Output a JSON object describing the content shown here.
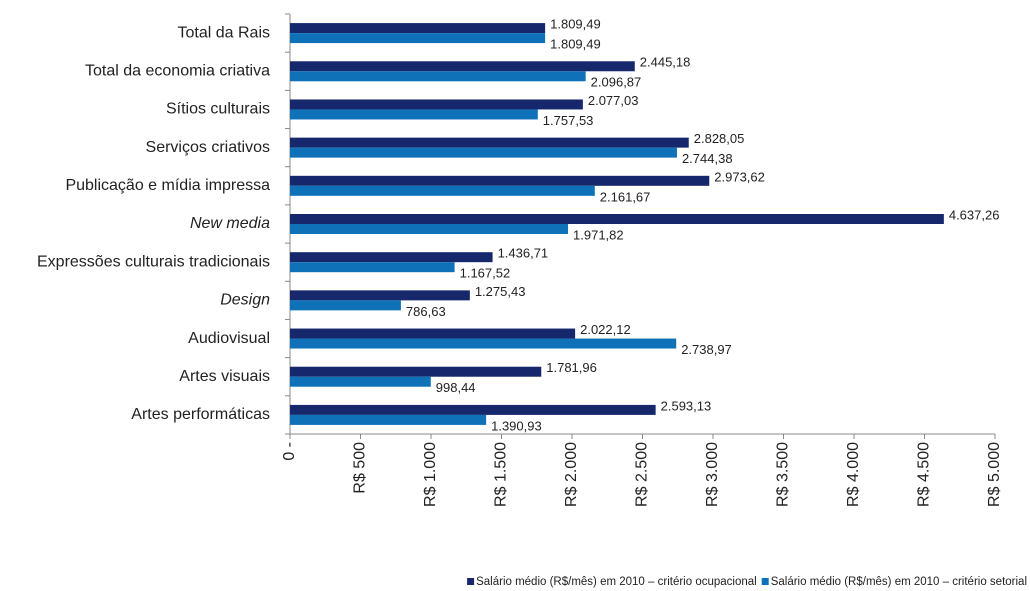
{
  "chart_data": {
    "type": "barh",
    "categories": [
      "Total da Rais",
      "Total da economia criativa",
      "Sítios culturais",
      "Serviços criativos",
      "Publicação e mídia impressa",
      "New media",
      "Expressões culturais tradicionais",
      "Design",
      "Audiovisual",
      "Artes visuais",
      "Artes performáticas"
    ],
    "category_style": [
      "normal",
      "normal",
      "normal",
      "normal",
      "normal",
      "italic",
      "normal",
      "italic",
      "normal",
      "normal",
      "normal"
    ],
    "series": [
      {
        "name": "Salário médio (R$/mês) em 2010 – critério ocupacional",
        "color": "#16286b",
        "values": [
          1809.49,
          2445.18,
          2077.03,
          2828.05,
          2973.62,
          4637.26,
          1436.71,
          1275.43,
          2022.12,
          1781.96,
          2593.13
        ],
        "value_labels": [
          "1.809,49",
          "2.445,18",
          "2.077,03",
          "2.828,05",
          "2.973,62",
          "4.637,26",
          "1.436,71",
          "1.275,43",
          "2.022,12",
          "1.781,96",
          "2.593,13"
        ]
      },
      {
        "name": "Salário médio (R$/mês) em 2010 – critério setorial",
        "color": "#0f72b8",
        "values": [
          1809.49,
          2096.87,
          1757.53,
          2744.38,
          2161.67,
          1971.82,
          1167.52,
          786.63,
          2738.97,
          998.44,
          1390.93
        ],
        "value_labels": [
          "1.809,49",
          "2.096,87",
          "1.757,53",
          "2.744,38",
          "2.161,67",
          "1.971,82",
          "1.167,52",
          "786,63",
          "2.738,97",
          "998,44",
          "1.390,93"
        ]
      }
    ],
    "xlim": [
      0,
      5000
    ],
    "xticks": [
      {
        "value": 0,
        "label": "0 -"
      },
      {
        "value": 500,
        "label": "R$ 500"
      },
      {
        "value": 1000,
        "label": "R$ 1.000"
      },
      {
        "value": 1500,
        "label": "R$ 1.500"
      },
      {
        "value": 2000,
        "label": "R$ 2.000"
      },
      {
        "value": 2500,
        "label": "R$ 2.500"
      },
      {
        "value": 3000,
        "label": "R$ 3.000"
      },
      {
        "value": 3500,
        "label": "R$ 3.500"
      },
      {
        "value": 4000,
        "label": "R$ 4.000"
      },
      {
        "value": 4500,
        "label": "R$ 4.500"
      },
      {
        "value": 5000,
        "label": "R$ 5.000"
      }
    ],
    "legend": "bottom-right",
    "grid": false
  }
}
